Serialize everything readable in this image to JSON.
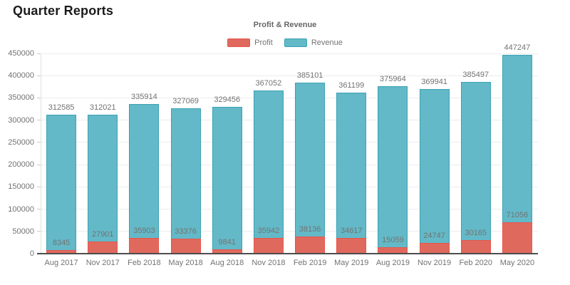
{
  "header": {
    "title": "Quarter Reports"
  },
  "chart": {
    "title": "Profit & Revenue"
  },
  "theme": {
    "background": "#ffffff",
    "text_color": "#737373",
    "page_title_color": "#1b1b1b",
    "chart_title_color": "#666666",
    "grid_color": "#ececec",
    "axis_line_color": "#4d4d4d",
    "tick_color": "#c9c9c9",
    "yaxis_line_color": "#e0e0e0"
  },
  "chart_data": {
    "type": "bar",
    "title": "Profit & Revenue",
    "xlabel": "",
    "ylabel": "",
    "ylim": [
      0,
      450000
    ],
    "ytick_step": 50000,
    "grid": true,
    "legend_position": "top",
    "bar_style": "overlapped",
    "value_labels": true,
    "categories": [
      "Aug 2017",
      "Nov 2017",
      "Feb 2018",
      "May 2018",
      "Aug 2018",
      "Nov 2018",
      "Feb 2019",
      "May 2019",
      "Aug 2019",
      "Nov 2019",
      "Feb 2020",
      "May 2020"
    ],
    "series": [
      {
        "name": "Profit",
        "color": "#e0695e",
        "border_color": "#e8544a",
        "values": [
          8345,
          27901,
          35903,
          33376,
          9841,
          35942,
          38136,
          34617,
          15059,
          24747,
          30165,
          71056
        ]
      },
      {
        "name": "Revenue",
        "color": "#63b9c7",
        "border_color": "#3aa2b5",
        "values": [
          312585,
          312021,
          335914,
          327069,
          329456,
          367052,
          385101,
          361199,
          375964,
          369941,
          385497,
          447247
        ]
      }
    ]
  }
}
